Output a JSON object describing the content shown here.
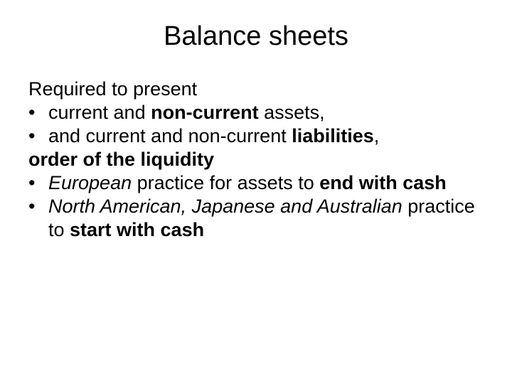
{
  "title": "Balance sheets",
  "intro": "Required to present",
  "b1_pre": "current and ",
  "b1_bold": "non-current",
  "b1_post": " assets,",
  "b2_pre": "and current and non-current ",
  "b2_bold": "liabilities",
  "b2_post": ",",
  "order": "order of the liquidity",
  "b3_italic": "European",
  "b3_mid": " practice for assets to ",
  "b3_bold": "end with cash",
  "b4_italic": "North American, Japanese and Australian",
  "b4_mid": " practice to ",
  "b4_bold": "start with cash",
  "bullet_char": "•"
}
